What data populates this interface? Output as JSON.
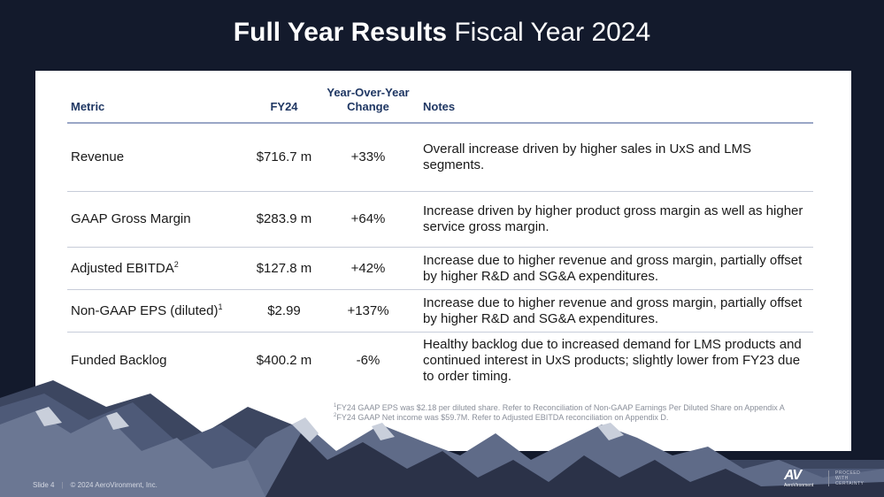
{
  "title": {
    "bold": "Full Year Results",
    "light": "Fiscal Year 2024"
  },
  "table": {
    "headers": {
      "metric": "Metric",
      "fy": "FY24",
      "yoy": "Year-Over-Year Change",
      "notes": "Notes"
    },
    "rows": [
      {
        "metric": "Revenue",
        "sup": "",
        "fy": "$716.7 m",
        "yoy": "+33%",
        "notes": "Overall increase driven by higher sales in UxS and LMS segments."
      },
      {
        "metric": "GAAP Gross Margin",
        "sup": "",
        "fy": "$283.9 m",
        "yoy": "+64%",
        "notes": "Increase driven by higher product gross margin as well as higher service gross margin."
      },
      {
        "metric": "Adjusted EBITDA",
        "sup": "2",
        "fy": "$127.8 m",
        "yoy": "+42%",
        "notes": "Increase due to higher revenue and gross margin, partially offset by higher R&D and SG&A expenditures."
      },
      {
        "metric": "Non-GAAP EPS (diluted)",
        "sup": "1",
        "fy": "$2.99",
        "yoy": "+137%",
        "notes": "Increase due to higher revenue and gross margin, partially offset by higher R&D and SG&A expenditures."
      },
      {
        "metric": "Funded Backlog",
        "sup": "",
        "fy": "$400.2 m",
        "yoy": "-6%",
        "notes": "Healthy backlog due to increased demand for LMS products and continued interest in UxS products; slightly lower from FY23 due to order timing."
      }
    ]
  },
  "footnotes": [
    {
      "num": "1",
      "text": "FY24 GAAP EPS was $2.18 per diluted share. Refer to Reconciliation of Non-GAAP Earnings Per Diluted Share on Appendix A"
    },
    {
      "num": "2",
      "text": "FY24 GAAP Net income was $59.7M. Refer to Adjusted EBITDA reconciliation on Appendix D."
    }
  ],
  "footer": {
    "slide": "Slide 4",
    "separator": "|",
    "copyright": "© 2024 AeroVironment, Inc."
  },
  "logo": {
    "mark": "AV",
    "brand": "AeroVironment",
    "tagline": [
      "PROCEED",
      "WITH",
      "CERTAINTY"
    ]
  },
  "colors": {
    "background": "#131a2c",
    "header_text": "#1f3763",
    "panel": "#ffffff"
  }
}
